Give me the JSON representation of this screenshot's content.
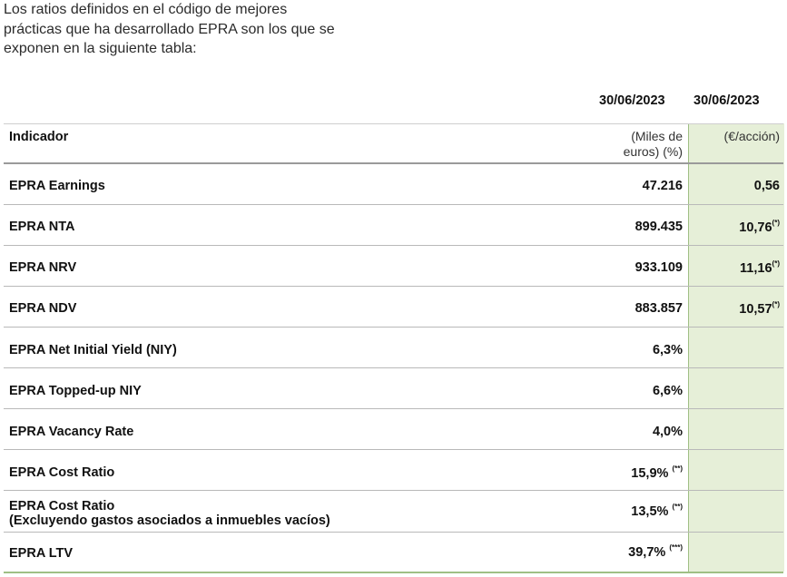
{
  "intro": {
    "line1": "Los ratios definidos en el código de mejores",
    "line2": "prácticas que ha desarrollado EPRA son los que se",
    "line3": "exponen en la siguiente tabla:"
  },
  "table": {
    "date_col1": "30/06/2023",
    "date_col2": "30/06/2023",
    "indicator_header": "Indicador",
    "unit_col1_line1": "(Miles de",
    "unit_col1_line2": "euros) (%)",
    "unit_col2": "(€/acción)",
    "rows": [
      {
        "label": "EPRA Earnings",
        "value": "47.216",
        "note": "",
        "value2": "0,56",
        "note2": ""
      },
      {
        "label": "EPRA NTA",
        "value": "899.435",
        "note": "",
        "value2": "10,76",
        "note2": "(*)"
      },
      {
        "label": "EPRA NRV",
        "value": "933.109",
        "note": "",
        "value2": "11,16",
        "note2": "(*)"
      },
      {
        "label": "EPRA NDV",
        "value": "883.857",
        "note": "",
        "value2": "10,57",
        "note2": "(*)"
      },
      {
        "label": "EPRA Net Initial Yield (NIY)",
        "value": "6,3%",
        "note": "",
        "value2": "",
        "note2": ""
      },
      {
        "label": "EPRA Topped-up NIY",
        "value": "6,6%",
        "note": "",
        "value2": "",
        "note2": ""
      },
      {
        "label": "EPRA Vacancy Rate",
        "value": "4,0%",
        "note": "",
        "value2": "",
        "note2": ""
      },
      {
        "label": "EPRA Cost Ratio",
        "value": "15,9%",
        "note": "(**)",
        "value2": "",
        "note2": ""
      },
      {
        "label": "EPRA Cost Ratio",
        "label_line2": "(Excluyendo gastos asociados a inmuebles vacíos)",
        "value": "13,5%",
        "note": "(**)",
        "value2": "",
        "note2": ""
      },
      {
        "label": "EPRA LTV",
        "value": "39,7%",
        "note": "(***)",
        "value2": "",
        "note2": ""
      }
    ]
  },
  "colors": {
    "green_column_bg": "#e6efd8",
    "green_border": "#9fbf85",
    "row_line": "#b9b9b9"
  }
}
